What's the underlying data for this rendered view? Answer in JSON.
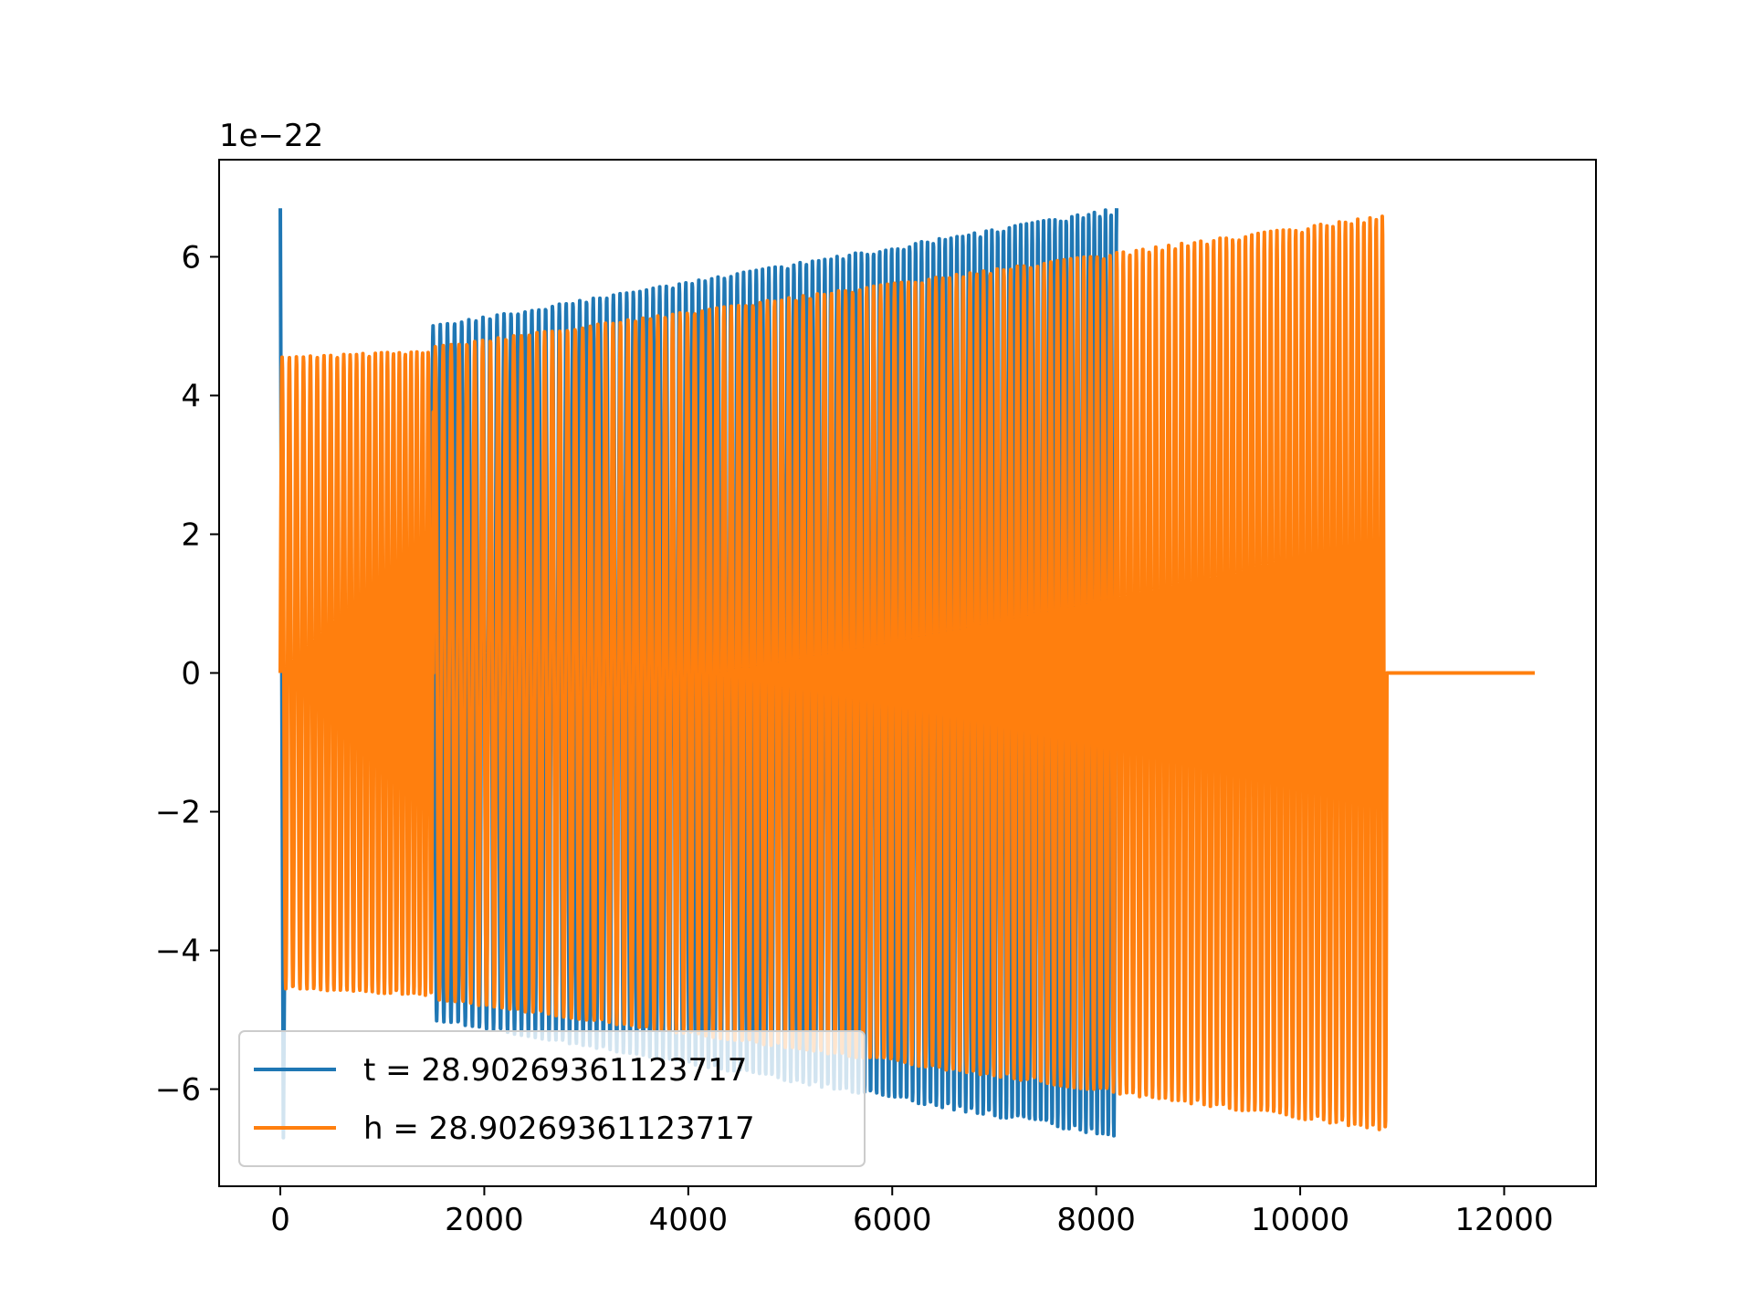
{
  "chart_data": {
    "type": "line",
    "title": "",
    "xlabel": "",
    "ylabel": "",
    "y_offset_label": "1e−22",
    "xlim": [
      -600,
      12900
    ],
    "ylim": [
      -7.4,
      7.4
    ],
    "x_ticks": [
      {
        "value": 0,
        "label": "0"
      },
      {
        "value": 2000,
        "label": "2000"
      },
      {
        "value": 4000,
        "label": "4000"
      },
      {
        "value": 6000,
        "label": "6000"
      },
      {
        "value": 8000,
        "label": "8000"
      },
      {
        "value": 10000,
        "label": "10000"
      },
      {
        "value": 12000,
        "label": "12000"
      }
    ],
    "y_ticks": [
      {
        "value": -6,
        "label": "−6"
      },
      {
        "value": -4,
        "label": "−4"
      },
      {
        "value": -2,
        "label": "−2"
      },
      {
        "value": 0,
        "label": "0"
      },
      {
        "value": 2,
        "label": "2"
      },
      {
        "value": 4,
        "label": "4"
      },
      {
        "value": 6,
        "label": "6"
      }
    ],
    "grid": false,
    "legend_position": "lower-left",
    "series": [
      {
        "name": "t = 28.90269361123717",
        "color": "#1f77b4",
        "segments": [
          {
            "x_start": 0,
            "x_end": 60,
            "y": 0,
            "kind": "spike",
            "peak": 6.7,
            "trough": -6.7
          },
          {
            "x_start": 60,
            "x_end": 1480,
            "y": 0,
            "kind": "flat"
          },
          {
            "x_start": 1480,
            "x_end": 8200,
            "kind": "oscillation",
            "amp_start": 5.0,
            "amp_end": 6.7,
            "cycles": 95
          }
        ]
      },
      {
        "name": "h = 28.90269361123717",
        "color": "#ff7f0e",
        "segments": [
          {
            "x_start": 0,
            "x_end": 1500,
            "kind": "oscillation",
            "amp_start": 4.55,
            "amp_end": 4.65,
            "cycles": 21
          },
          {
            "x_start": 1500,
            "x_end": 10850,
            "kind": "oscillation",
            "amp_start": 4.7,
            "amp_end": 6.6,
            "cycles": 120
          },
          {
            "x_start": 10850,
            "x_end": 12300,
            "y": 0,
            "kind": "flat"
          }
        ]
      }
    ]
  }
}
